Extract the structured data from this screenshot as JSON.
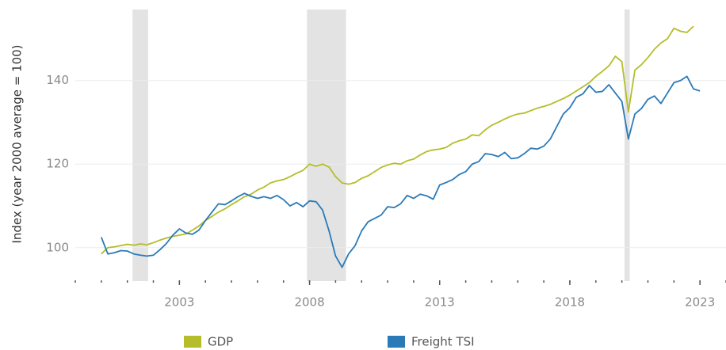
{
  "chart_data": {
    "type": "line",
    "y_label": "Index (year 2000 average = 100)",
    "x": [
      2000,
      2000.25,
      2000.5,
      2000.75,
      2001,
      2001.25,
      2001.5,
      2001.75,
      2002,
      2002.25,
      2002.5,
      2002.75,
      2003,
      2003.25,
      2003.5,
      2003.75,
      2004,
      2004.25,
      2004.5,
      2004.75,
      2005,
      2005.25,
      2005.5,
      2005.75,
      2006,
      2006.25,
      2006.5,
      2006.75,
      2007,
      2007.25,
      2007.5,
      2007.75,
      2008,
      2008.25,
      2008.5,
      2008.75,
      2009,
      2009.25,
      2009.5,
      2009.75,
      2010,
      2010.25,
      2010.5,
      2010.75,
      2011,
      2011.25,
      2011.5,
      2011.75,
      2012,
      2012.25,
      2012.5,
      2012.75,
      2013,
      2013.25,
      2013.5,
      2013.75,
      2014,
      2014.25,
      2014.5,
      2014.75,
      2015,
      2015.25,
      2015.5,
      2015.75,
      2016,
      2016.25,
      2016.5,
      2016.75,
      2017,
      2017.25,
      2017.5,
      2017.75,
      2018,
      2018.25,
      2018.5,
      2018.75,
      2019,
      2019.25,
      2019.5,
      2019.75,
      2020,
      2020.25,
      2020.5,
      2020.75,
      2021,
      2021.25,
      2021.5,
      2021.75,
      2022,
      2022.25,
      2022.5,
      2022.75,
      2023
    ],
    "series": [
      {
        "name": "GDP",
        "color": "#b5bd2a",
        "values": [
          98.5,
          100,
          100.2,
          100.5,
          100.8,
          100.6,
          100.9,
          100.7,
          101.2,
          101.8,
          102.3,
          102.7,
          103,
          103.3,
          104.2,
          105.2,
          106.5,
          107.5,
          108.5,
          109.3,
          110.3,
          111.2,
          112.2,
          112.8,
          113.8,
          114.5,
          115.5,
          116,
          116.3,
          117,
          117.8,
          118.5,
          120,
          119.5,
          120,
          119.3,
          117,
          115.5,
          115.2,
          115.6,
          116.6,
          117.2,
          118.2,
          119.2,
          119.8,
          120.2,
          120,
          120.8,
          121.2,
          122.2,
          123,
          123.4,
          123.6,
          124,
          125,
          125.6,
          126,
          127,
          126.8,
          128.2,
          129.3,
          130,
          130.8,
          131.5,
          132,
          132.2,
          132.8,
          133.4,
          133.8,
          134.3,
          135,
          135.7,
          136.5,
          137.5,
          138.5,
          139.5,
          141,
          142.2,
          143.5,
          145.8,
          144.5,
          132.5,
          142.5,
          143.8,
          145.5,
          147.5,
          149,
          150,
          152.5,
          151.8,
          151.5,
          153,
          null
        ]
      },
      {
        "name": "Freight TSI",
        "color": "#2a7ab8",
        "values": [
          102.5,
          98.5,
          98.8,
          99.3,
          99.2,
          98.5,
          98.2,
          98,
          98.2,
          99.5,
          101,
          103,
          104.5,
          103.5,
          103.2,
          104.2,
          106.5,
          108.5,
          110.5,
          110.3,
          111.2,
          112.2,
          113,
          112.3,
          111.8,
          112.2,
          111.8,
          112.5,
          111.5,
          110,
          110.8,
          109.8,
          111.2,
          111,
          109,
          104,
          98,
          95.3,
          98.5,
          100.5,
          104,
          106.2,
          107,
          107.8,
          109.8,
          109.6,
          110.5,
          112.5,
          111.8,
          112.8,
          112.4,
          111.6,
          115,
          115.6,
          116.3,
          117.5,
          118.2,
          120,
          120.6,
          122.5,
          122.3,
          121.8,
          122.8,
          121.3,
          121.5,
          122.5,
          123.8,
          123.6,
          124.3,
          126,
          129,
          132,
          133.5,
          136,
          136.8,
          138.8,
          137.2,
          137.4,
          139,
          137,
          135,
          126,
          132,
          133.3,
          135.5,
          136.3,
          134.5,
          137,
          139.5,
          140,
          141,
          138,
          137.5
        ]
      }
    ],
    "xlim": [
      1999,
      2024
    ],
    "xticks": [
      2003,
      2008,
      2013,
      2018,
      2023
    ],
    "xminor_ticks": [
      1999,
      2000,
      2001,
      2002,
      2003,
      2004,
      2005,
      2006,
      2007,
      2008,
      2009,
      2010,
      2011,
      2012,
      2013,
      2014,
      2015,
      2016,
      2017,
      2018,
      2019,
      2020,
      2021,
      2022,
      2023,
      2024
    ],
    "ylim": [
      92,
      157
    ],
    "yticks": [
      100,
      120,
      140
    ],
    "grid": true,
    "shaded_periods": [
      [
        2001.2,
        2001.8
      ],
      [
        2007.9,
        2009.4
      ],
      [
        2020.1,
        2020.3
      ]
    ],
    "shade_color": "#e3e3e3",
    "legend": "bottom"
  }
}
